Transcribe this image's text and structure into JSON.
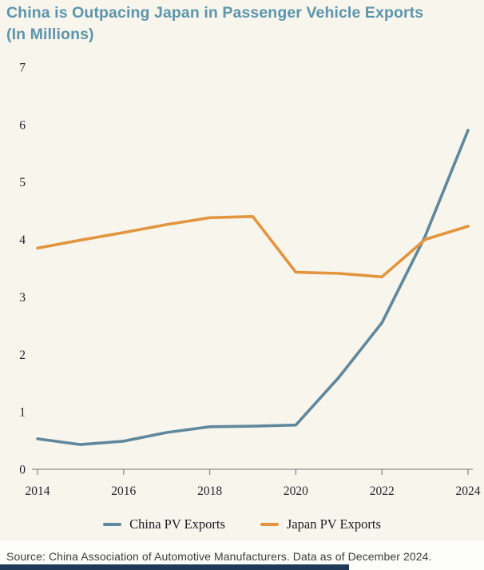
{
  "title": {
    "line1": "China is Outpacing Japan in Passenger Vehicle Exports",
    "line2": "(In Millions)"
  },
  "chart_data": {
    "type": "line",
    "x": [
      2014,
      2015,
      2016,
      2017,
      2018,
      2019,
      2020,
      2021,
      2022,
      2023,
      2024
    ],
    "series": [
      {
        "name": "China PV Exports",
        "color": "#60889d",
        "values": [
          0.53,
          0.43,
          0.49,
          0.64,
          0.74,
          0.75,
          0.77,
          1.6,
          2.55,
          4.05,
          5.9
        ]
      },
      {
        "name": "Japan PV Exports",
        "color": "#e3943e",
        "values": [
          3.85,
          3.99,
          4.12,
          4.26,
          4.38,
          4.4,
          3.43,
          3.41,
          3.35,
          4.0,
          4.23
        ]
      }
    ],
    "ylim": [
      0,
      7
    ],
    "yticks": [
      "0",
      "1",
      "2",
      "3",
      "4",
      "5",
      "6",
      "7"
    ],
    "xticks": [
      "2014",
      "2016",
      "2018",
      "2020",
      "2022",
      "2024"
    ],
    "grid": false,
    "legend_position": "bottom",
    "title": "China is Outpacing Japan in Passenger Vehicle Exports (In Millions)",
    "xlabel": "",
    "ylabel": ""
  },
  "source": "Source: China Association of Automotive Manufacturers. Data as of December 2024.",
  "colors": {
    "background": "#f7f5ec",
    "title": "#5c95ac",
    "axis": "#8c8c8c",
    "tick_label": "#24242e",
    "china_line": "#60889d",
    "japan_line": "#e3943e",
    "footer_bar": "#1f3a57",
    "source_strip": "#fcfcfa"
  }
}
